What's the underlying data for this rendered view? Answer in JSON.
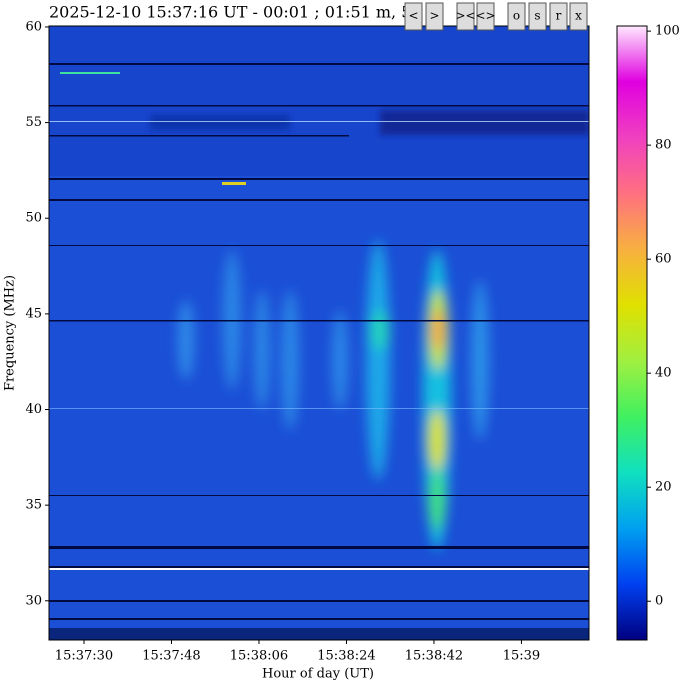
{
  "chart_data": {
    "type": "spectrogram",
    "title": "2025-12-10 15:37:16 UT - 00:01 ; 01:51 m, 5",
    "xlabel": "Hour of day (UT)",
    "ylabel": "Frequency (MHz)",
    "xlim": [
      56242.8,
      56353.9
    ],
    "xticks": [
      {
        "value": 56250,
        "label": "15:37:30"
      },
      {
        "value": 56268,
        "label": "15:37:48"
      },
      {
        "value": 56286,
        "label": "15:38:06"
      },
      {
        "value": 56304,
        "label": "15:38:24"
      },
      {
        "value": 56322,
        "label": "15:38:42"
      },
      {
        "value": 56340,
        "label": "15:39"
      }
    ],
    "ylim": [
      27.95,
      60.05
    ],
    "yticks": [
      30,
      35,
      40,
      45,
      50,
      55,
      60
    ],
    "colorbar_lim": [
      -6.8,
      100.9
    ],
    "colorbar_ticks": [
      0,
      20,
      40,
      60,
      80,
      100
    ],
    "colormap": [
      "#000080",
      "#0040f0",
      "#00a0f0",
      "#10e0c0",
      "#40f060",
      "#a0f040",
      "#e0e000",
      "#f8b040",
      "#ff7080",
      "#f040c0",
      "#e000e0",
      "#ffe8ff"
    ],
    "buttons": [
      "<",
      ">",
      "><",
      "<>",
      "o",
      "s",
      "r",
      "x"
    ]
  }
}
